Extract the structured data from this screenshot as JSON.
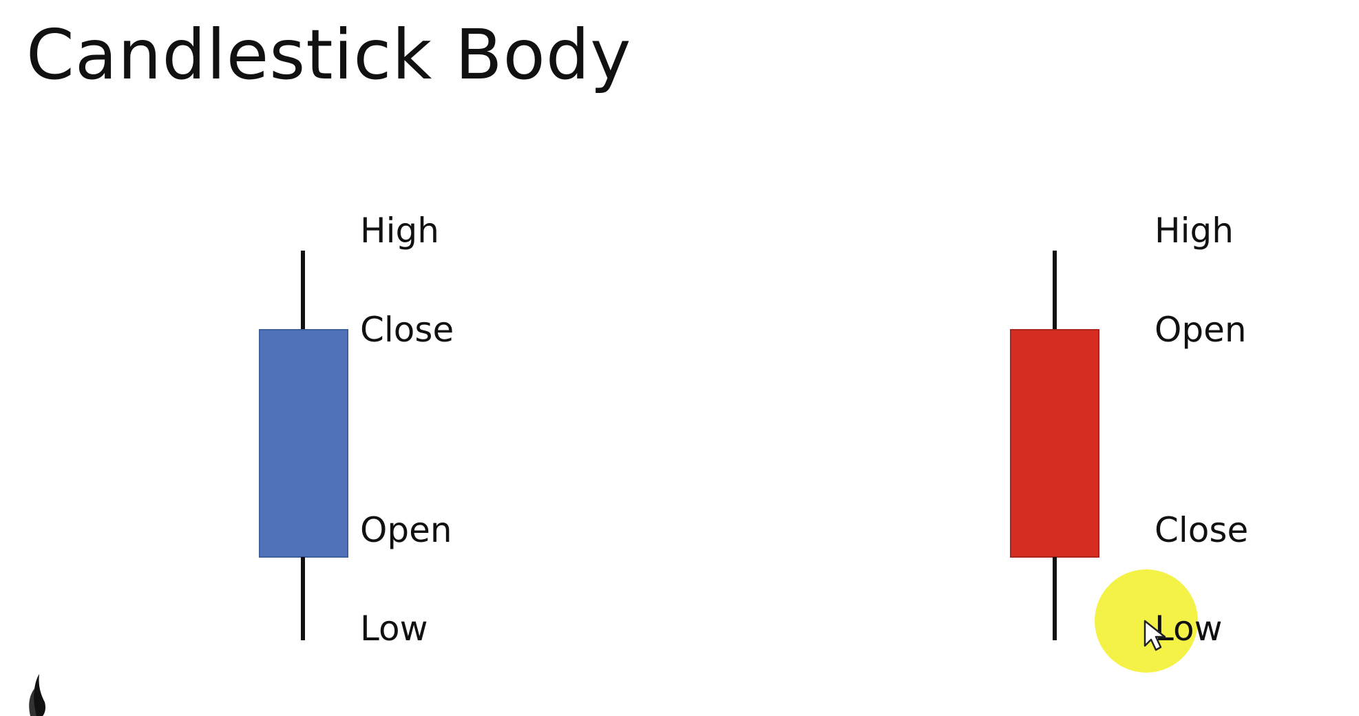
{
  "title": "Candlestick Body",
  "colors": {
    "bullish_body": "#4f72b8",
    "bearish_body": "#d52b20",
    "wick": "#111111",
    "cursor_highlight": "#f3ef1e"
  },
  "candles": [
    {
      "id": "bullish",
      "body_color": "#4f72b8",
      "labels": {
        "top": "High",
        "body_top": "Close",
        "body_bottom": "Open",
        "bottom": "Low"
      }
    },
    {
      "id": "bearish",
      "body_color": "#d52b20",
      "labels": {
        "top": "High",
        "body_top": "Open",
        "body_bottom": "Close",
        "bottom": "Low"
      }
    }
  ],
  "icons": {
    "cursor": "mouse-pointer-icon",
    "logo": "flame-logo-icon"
  }
}
